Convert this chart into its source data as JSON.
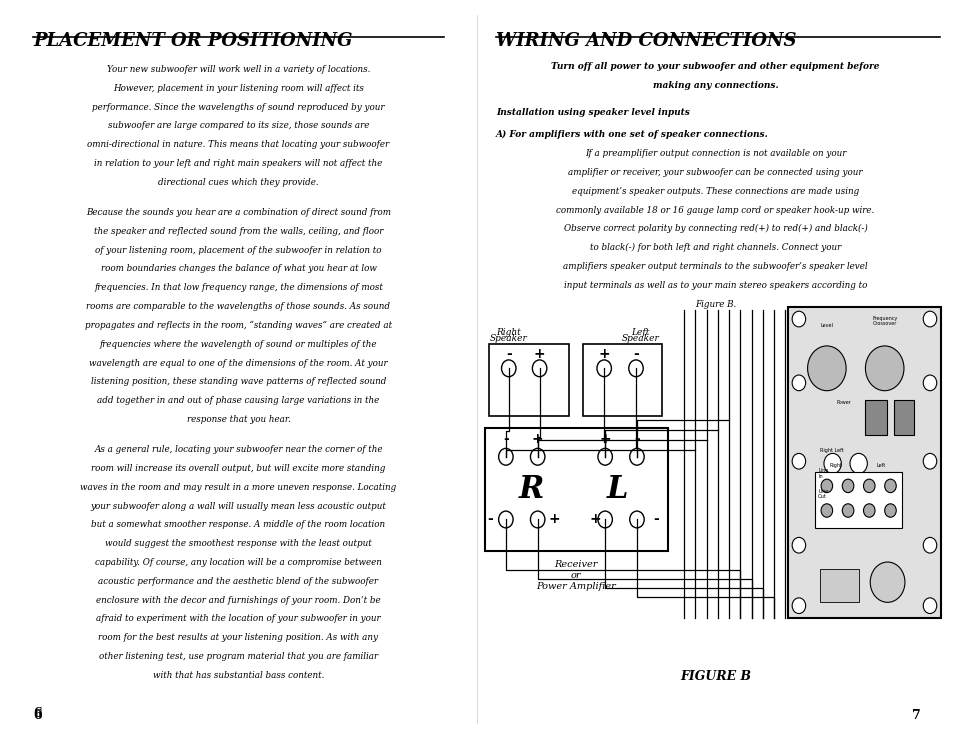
{
  "bg_color": "#ffffff",
  "left_title": "PLACEMENT OR POSITIONING",
  "right_title": "WIRING AND CONNECTIONS",
  "left_paragraphs": [
    "Your new subwoofer will work well in a variety of locations.  However, placement in your listening room will affect its performance.   Since the wavelengths of sound reproduced by your subwoofer are large compared to its size, those sounds are omni-directional in nature.   This means that locating your subwoofer in relation to your left and right main speakers will not affect the directional cues which they provide.",
    "Because the sounds you hear are a combination of direct sound from the speaker and reflected sound from the walls, ceiling, and floor of your listening room, placement of the subwoofer in relation to room boundaries changes the balance of what you hear at low frequencies.   In that low frequency range, the dimensions of most rooms are comparable to the wavelengths of those sounds.  As sound propagates and reflects in the room, “standing waves” are created at frequencies where the wavelength of sound or multiples of the wavelength are equal to one of the dimensions of the room.   At your listening position, these standing wave patterns of reflected sound add together in and out of phase causing large variations in the response that you hear.",
    "As a general rule, locating your subwoofer near the corner of the room will increase its overall output, but will excite more standing waves in the room and may result in a more uneven response.  Locating your subwoofer along a wall will usually mean less acoustic output but a somewhat smoother response.   A middle of the room location would suggest the smoothest response with the least output capability.   Of course, any location will be a compromise between acoustic performance and the aesthetic blend of the subwoofer enclosure with the decor and furnishings of your room.   Don’t be afraid to experiment with the location of your subwoofer in your room for the best results at your listening position.   As with any other listening test, use program material that you are familiar with that has substantial bass content."
  ],
  "right_warning": "Turn off all power to your subwoofer and other equipment before making any connections.",
  "right_subhead1": "Installation using speaker level inputs",
  "right_subhead2": "A) For amplifiers with one set of speaker connections.",
  "right_paragraph": "If a preamplifier output connection is not available on your amplifier or receiver, your subwoofer can be connected using your equipment’s speaker outputs.  These connections are made using commonly available 18 or 16 gauge lamp cord or speaker hook-up wire.   Observe correct polarity by connecting red(+) to red(+) and black(-) to black(-) for both left and right channels. Connect your amplifiers speaker output terminals to the subwoofer’s speaker level input terminals as well as to your main stereo speakers according to Figure B.",
  "figure_caption": "FIGURE B",
  "left_page_num": "6",
  "right_page_num": "7"
}
